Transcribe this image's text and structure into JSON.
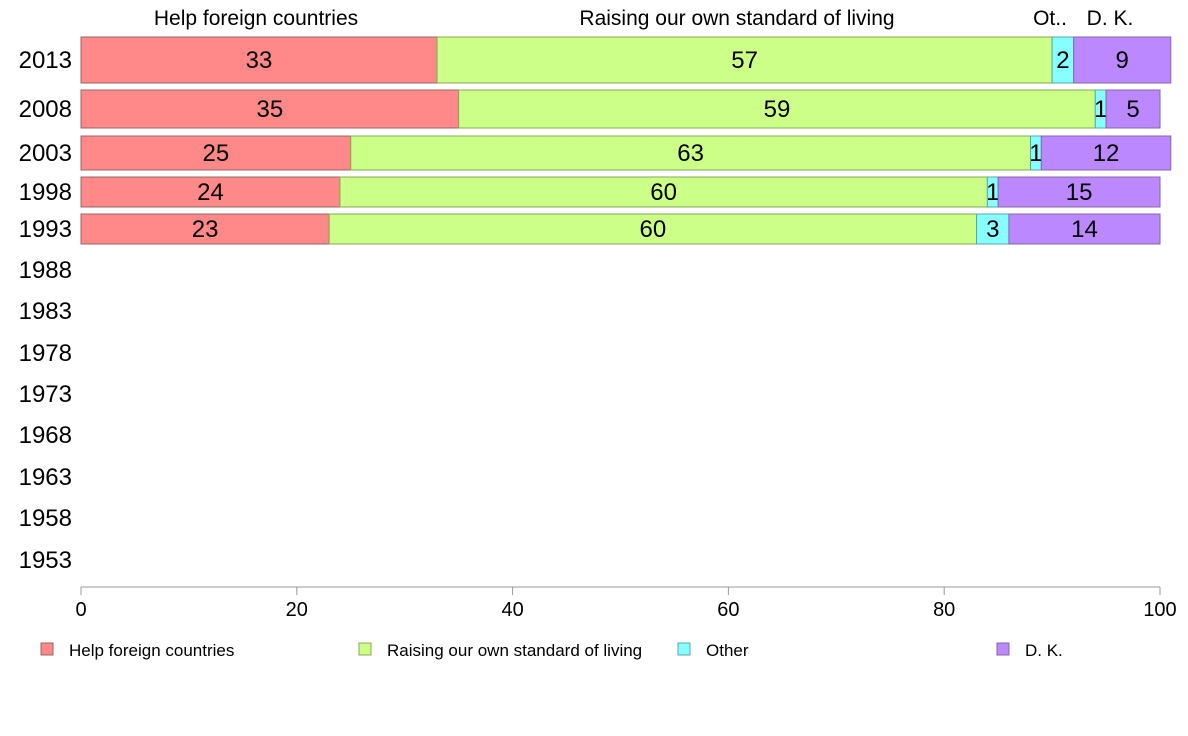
{
  "chart_data": {
    "type": "bar",
    "orientation": "horizontal",
    "stacked": true,
    "categories": [
      "2013",
      "2008",
      "2003",
      "1998",
      "1993",
      "1988",
      "1983",
      "1978",
      "1973",
      "1968",
      "1963",
      "1958",
      "1953"
    ],
    "series": [
      {
        "name": "Help foreign countries",
        "color": "#ff8888",
        "values": [
          33,
          35,
          25,
          24,
          23,
          null,
          null,
          null,
          null,
          null,
          null,
          null,
          null
        ]
      },
      {
        "name": "Raising our own standard of living",
        "color": "#ccff88",
        "values": [
          57,
          59,
          63,
          60,
          60,
          null,
          null,
          null,
          null,
          null,
          null,
          null,
          null
        ]
      },
      {
        "name": "Other",
        "color": "#88ffff",
        "values": [
          2,
          1,
          1,
          1,
          3,
          null,
          null,
          null,
          null,
          null,
          null,
          null,
          null
        ]
      },
      {
        "name": "D. K.",
        "color": "#bb88ff",
        "values": [
          9,
          5,
          12,
          15,
          14,
          null,
          null,
          null,
          null,
          null,
          null,
          null,
          null
        ]
      }
    ],
    "header_labels": [
      "Help foreign countries",
      "Raising our own standard of living",
      "Ot..",
      "D. K."
    ],
    "xlim": [
      0,
      100
    ],
    "xticks": [
      0,
      20,
      40,
      60,
      80,
      100
    ],
    "grid": false,
    "legend_position": "bottom"
  }
}
